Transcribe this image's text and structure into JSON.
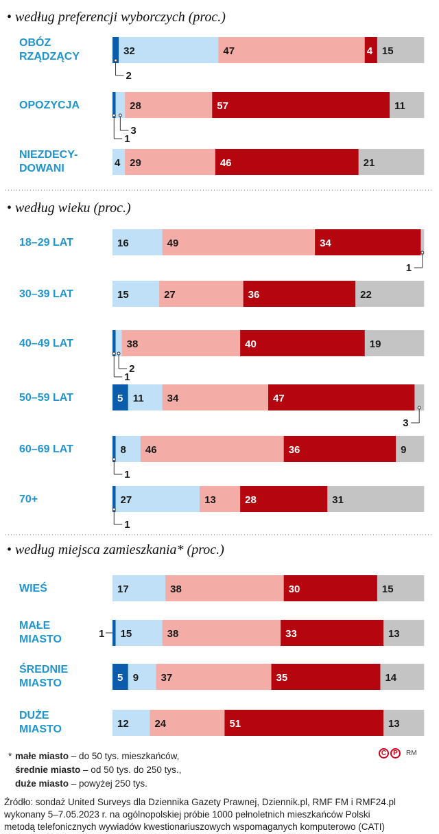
{
  "chart_data": {
    "type": "bar",
    "orientation": "horizontal-stacked",
    "colors": [
      "#0b5cab",
      "#bfe0f7",
      "#f4aca6",
      "#b5050e",
      "#c4c4c4"
    ],
    "sections": [
      {
        "title": "według preferencji wyborczych (proc.)",
        "rows": [
          {
            "label": [
              "OBÓZ",
              "RZĄDZĄCY"
            ],
            "values": [
              2,
              32,
              47,
              4,
              15
            ],
            "shown": [
              "",
              "32",
              "47",
              "4",
              "15"
            ],
            "callouts": [
              {
                "seg": 0,
                "text": "2",
                "side": "left",
                "level": 1
              }
            ]
          },
          {
            "label": [
              "OPOZYCJA"
            ],
            "values": [
              1,
              3,
              28,
              57,
              11
            ],
            "shown": [
              "",
              "",
              "28",
              "57",
              "11"
            ],
            "callouts": [
              {
                "seg": 0,
                "text": "1",
                "side": "left",
                "level": 2
              },
              {
                "seg": 1,
                "text": "3",
                "side": "left",
                "level": 1
              }
            ]
          },
          {
            "label": [
              "NIEZDECY-",
              "DOWANI"
            ],
            "values": [
              0,
              4,
              29,
              46,
              21
            ],
            "shown": [
              "",
              "4",
              "29",
              "46",
              "21"
            ],
            "callouts": []
          }
        ]
      },
      {
        "title": "według wieku (proc.)",
        "rows": [
          {
            "label": [
              "18–29 LAT"
            ],
            "values": [
              0,
              16,
              49,
              34,
              1
            ],
            "shown": [
              "",
              "16",
              "49",
              "34",
              ""
            ],
            "callouts": [
              {
                "seg": 4,
                "text": "1",
                "side": "right",
                "level": 1
              }
            ]
          },
          {
            "label": [
              "30–39 LAT"
            ],
            "values": [
              0,
              15,
              27,
              36,
              22
            ],
            "shown": [
              "",
              "15",
              "27",
              "36",
              "22"
            ],
            "callouts": []
          },
          {
            "label": [
              "40–49 LAT"
            ],
            "values": [
              1,
              2,
              38,
              40,
              19
            ],
            "shown": [
              "",
              "",
              "38",
              "40",
              "19"
            ],
            "callouts": [
              {
                "seg": 1,
                "text": "2",
                "side": "left",
                "level": 1
              },
              {
                "seg": 0,
                "text": "1",
                "side": "left",
                "level": 2
              }
            ]
          },
          {
            "label": [
              "50–59 LAT"
            ],
            "values": [
              5,
              11,
              34,
              47,
              3
            ],
            "shown": [
              "5",
              "11",
              "34",
              "47",
              ""
            ],
            "callouts": [
              {
                "seg": 4,
                "text": "3",
                "side": "right",
                "level": 1
              }
            ]
          },
          {
            "label": [
              "60–69 LAT"
            ],
            "values": [
              1,
              8,
              46,
              36,
              9
            ],
            "shown": [
              "",
              "8",
              "46",
              "36",
              "9"
            ],
            "callouts": [
              {
                "seg": 0,
                "text": "1",
                "side": "left",
                "level": 1
              }
            ]
          },
          {
            "label": [
              "70+"
            ],
            "values": [
              1,
              27,
              13,
              28,
              31
            ],
            "shown": [
              "",
              "27",
              "13",
              "28",
              "31"
            ],
            "callouts": [
              {
                "seg": 0,
                "text": "1",
                "side": "left",
                "level": 1
              }
            ]
          }
        ]
      },
      {
        "title": "według miejsca zamieszkania* (proc.)",
        "rows": [
          {
            "label": [
              "WIEŚ"
            ],
            "values": [
              0,
              17,
              38,
              30,
              15
            ],
            "shown": [
              "",
              "17",
              "38",
              "30",
              "15"
            ],
            "callouts": []
          },
          {
            "label": [
              "MAŁE",
              "MIASTO"
            ],
            "values": [
              1,
              15,
              38,
              33,
              13
            ],
            "shown": [
              "",
              "15",
              "38",
              "33",
              "13"
            ],
            "callouts": [
              {
                "seg": 0,
                "text": "1",
                "side": "inline",
                "level": 0
              }
            ]
          },
          {
            "label": [
              "ŚREDNIE",
              "MIASTO"
            ],
            "values": [
              5,
              9,
              37,
              35,
              14
            ],
            "shown": [
              "5",
              "9",
              "37",
              "35",
              "14"
            ],
            "callouts": []
          },
          {
            "label": [
              "DUŻE",
              "MIASTO"
            ],
            "values": [
              0,
              12,
              24,
              51,
              13
            ],
            "shown": [
              "",
              "12",
              "24",
              "51",
              "13"
            ],
            "callouts": []
          }
        ]
      }
    ]
  },
  "footnote": {
    "star": "*",
    "l1_bold": "małe miasto",
    "l1_rest": " – do 50 tys. mieszkańców,",
    "l2_bold": "średnie miasto",
    "l2_rest": " – od 50 tys. do 250 tys.,",
    "l3_bold": "duże miasto",
    "l3_rest": " – powyżej 250 tys."
  },
  "source": {
    "line1": "Źródło: sondaż United Surveys dla Dziennika Gazety Prawnej, Dziennik.pl, RMF FM i RMF24.pl",
    "line2": "wykonany 5–7.05.2023 r. na ogólnopolskiej próbie 1000 pełnoletnich mieszkańców Polski",
    "line3": "metodą telefonicznych wywiadów kwestionariuszowych wspomaganych komputerowo (CATI)"
  },
  "marks": {
    "c": "C",
    "p": "P",
    "rm": "RM"
  }
}
